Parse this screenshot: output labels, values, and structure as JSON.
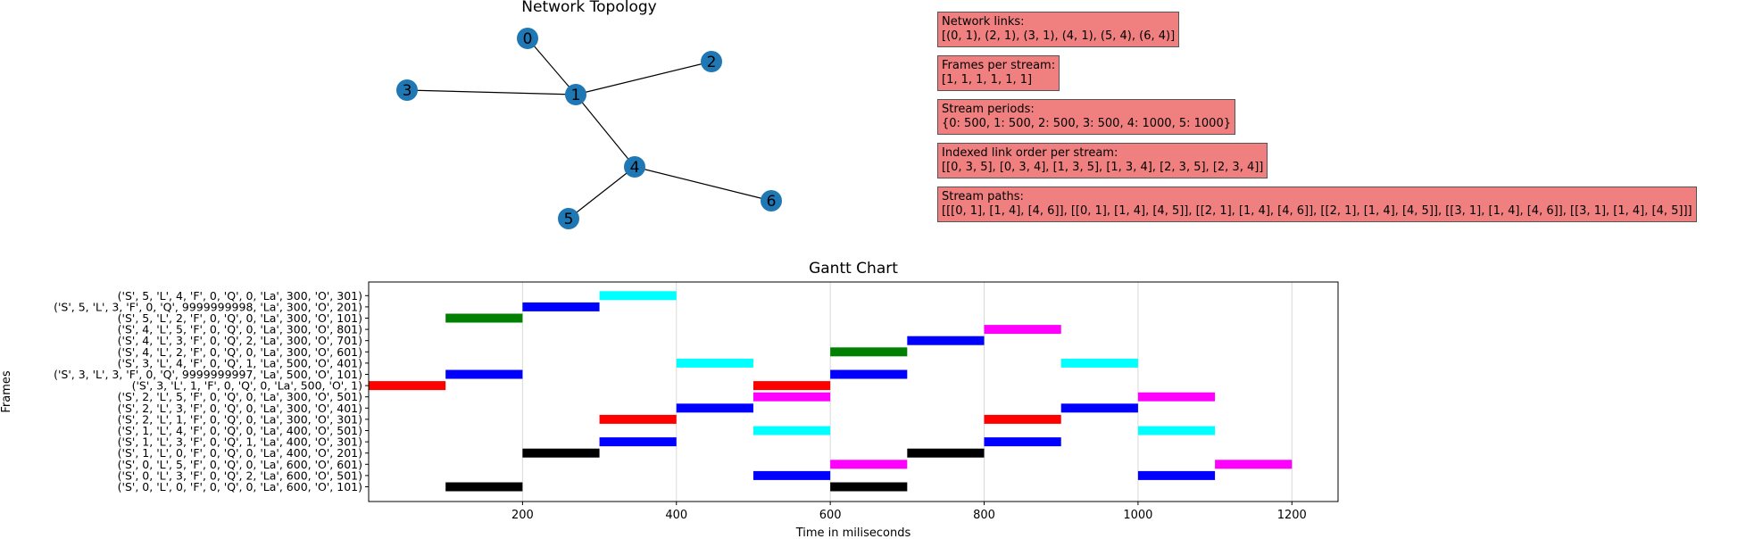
{
  "network": {
    "title": "Network  Topology",
    "nodes": [
      "0",
      "1",
      "2",
      "3",
      "4",
      "5",
      "6"
    ],
    "edges": [
      [
        0,
        1
      ],
      [
        2,
        1
      ],
      [
        3,
        1
      ],
      [
        4,
        1
      ],
      [
        5,
        4
      ],
      [
        6,
        4
      ]
    ],
    "node_color": "#1f77b4"
  },
  "info_boxes": [
    {
      "heading": "Network links:",
      "text": "[(0, 1), (2, 1), (3, 1), (4, 1), (5, 4), (6, 4)]"
    },
    {
      "heading": "Frames per stream:",
      "text": "[1, 1, 1, 1, 1, 1]"
    },
    {
      "heading": "Stream periods:",
      "text": "{0: 500, 1: 500, 2: 500, 3: 500, 4: 1000, 5: 1000}"
    },
    {
      "heading": "Indexed link order per stream:",
      "text": " [[0, 3, 5], [0, 3, 4], [1, 3, 5], [1, 3, 4], [2, 3, 5], [2, 3, 4]]"
    },
    {
      "heading": "Stream paths:",
      "text": " [[[0, 1], [1, 4], [4, 6]], [[0, 1], [1, 4], [4, 5]], [[2, 1], [1, 4], [4, 6]], [[2, 1], [1, 4], [4, 5]], [[3, 1], [1, 4], [4, 6]], [[3, 1], [1, 4], [4, 5]]]"
    }
  ],
  "info_box_color": "#f08080",
  "chart_data": {
    "type": "bar",
    "title": "Gantt Chart",
    "xlabel": "Time in miliseconds",
    "ylabel": "Frames",
    "xlim": [
      0,
      1260
    ],
    "xticks": [
      200,
      400,
      600,
      800,
      1000,
      1200
    ],
    "grid": "x",
    "categories": [
      "('S', 0, 'L', 0, 'F', 0, 'Q', 0, 'La', 600, 'O', 101)",
      "('S', 0, 'L', 3, 'F', 0, 'Q', 2, 'La', 600, 'O', 501)",
      "('S', 0, 'L', 5, 'F', 0, 'Q', 0, 'La', 600, 'O', 601)",
      "('S', 1, 'L', 0, 'F', 0, 'Q', 0, 'La', 400, 'O', 201)",
      "('S', 1, 'L', 3, 'F', 0, 'Q', 1, 'La', 400, 'O', 301)",
      "('S', 1, 'L', 4, 'F', 0, 'Q', 0, 'La', 400, 'O', 501)",
      "('S', 2, 'L', 1, 'F', 0, 'Q', 0, 'La', 300, 'O', 301)",
      "('S', 2, 'L', 3, 'F', 0, 'Q', 0, 'La', 300, 'O', 401)",
      "('S', 2, 'L', 5, 'F', 0, 'Q', 0, 'La', 300, 'O', 501)",
      "('S', 3, 'L', 1, 'F', 0, 'Q', 0, 'La', 500, 'O', 1)",
      "('S', 3, 'L', 3, 'F', 0, 'Q', 9999999997, 'La', 500, 'O', 101)",
      "('S', 3, 'L', 4, 'F', 0, 'Q', 1, 'La', 500, 'O', 401)",
      "('S', 4, 'L', 2, 'F', 0, 'Q', 0, 'La', 300, 'O', 601)",
      "('S', 4, 'L', 3, 'F', 0, 'Q', 2, 'La', 300, 'O', 701)",
      "('S', 4, 'L', 5, 'F', 0, 'Q', 0, 'La', 300, 'O', 801)",
      "('S', 5, 'L', 2, 'F', 0, 'Q', 0, 'La', 300, 'O', 101)",
      "('S', 5, 'L', 3, 'F', 0, 'Q', 9999999998, 'La', 300, 'O', 201)",
      "('S', 5, 'L', 4, 'F', 0, 'Q', 0, 'La', 300, 'O', 301)"
    ],
    "bars": [
      {
        "row": 0,
        "start": 100,
        "end": 200,
        "color": "#000000"
      },
      {
        "row": 0,
        "start": 600,
        "end": 700,
        "color": "#000000"
      },
      {
        "row": 1,
        "start": 500,
        "end": 600,
        "color": "#0000ff"
      },
      {
        "row": 1,
        "start": 1000,
        "end": 1100,
        "color": "#0000ff"
      },
      {
        "row": 2,
        "start": 600,
        "end": 700,
        "color": "#ff00ff"
      },
      {
        "row": 2,
        "start": 1100,
        "end": 1200,
        "color": "#ff00ff"
      },
      {
        "row": 3,
        "start": 200,
        "end": 300,
        "color": "#000000"
      },
      {
        "row": 3,
        "start": 700,
        "end": 800,
        "color": "#000000"
      },
      {
        "row": 4,
        "start": 300,
        "end": 400,
        "color": "#0000ff"
      },
      {
        "row": 4,
        "start": 800,
        "end": 900,
        "color": "#0000ff"
      },
      {
        "row": 5,
        "start": 500,
        "end": 600,
        "color": "#00ffff"
      },
      {
        "row": 5,
        "start": 1000,
        "end": 1100,
        "color": "#00ffff"
      },
      {
        "row": 6,
        "start": 300,
        "end": 400,
        "color": "#ff0000"
      },
      {
        "row": 6,
        "start": 800,
        "end": 900,
        "color": "#ff0000"
      },
      {
        "row": 7,
        "start": 400,
        "end": 500,
        "color": "#0000ff"
      },
      {
        "row": 7,
        "start": 900,
        "end": 1000,
        "color": "#0000ff"
      },
      {
        "row": 8,
        "start": 500,
        "end": 600,
        "color": "#ff00ff"
      },
      {
        "row": 8,
        "start": 1000,
        "end": 1100,
        "color": "#ff00ff"
      },
      {
        "row": 9,
        "start": 0,
        "end": 100,
        "color": "#ff0000"
      },
      {
        "row": 9,
        "start": 500,
        "end": 600,
        "color": "#ff0000"
      },
      {
        "row": 10,
        "start": 100,
        "end": 200,
        "color": "#0000ff"
      },
      {
        "row": 10,
        "start": 600,
        "end": 700,
        "color": "#0000ff"
      },
      {
        "row": 11,
        "start": 400,
        "end": 500,
        "color": "#00ffff"
      },
      {
        "row": 11,
        "start": 900,
        "end": 1000,
        "color": "#00ffff"
      },
      {
        "row": 12,
        "start": 600,
        "end": 700,
        "color": "#008000"
      },
      {
        "row": 13,
        "start": 700,
        "end": 800,
        "color": "#0000ff"
      },
      {
        "row": 14,
        "start": 800,
        "end": 900,
        "color": "#ff00ff"
      },
      {
        "row": 15,
        "start": 100,
        "end": 200,
        "color": "#008000"
      },
      {
        "row": 16,
        "start": 200,
        "end": 300,
        "color": "#0000ff"
      },
      {
        "row": 17,
        "start": 300,
        "end": 400,
        "color": "#00ffff"
      }
    ]
  }
}
